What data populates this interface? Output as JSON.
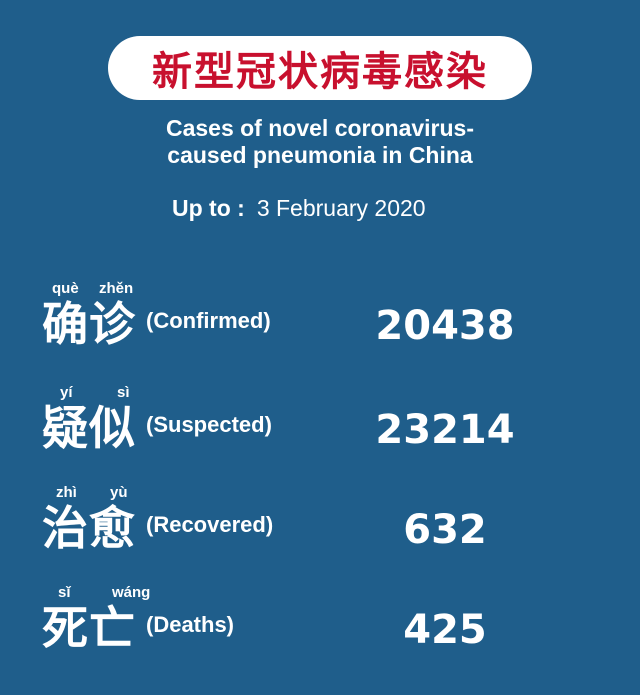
{
  "header": {
    "title_cn": "新型冠状病毒感染",
    "subtitle_line1": "Cases of novel coronavirus-",
    "subtitle_line2": "caused pneumonia in China",
    "up_to_label": "Up to :",
    "date": "3 February 2020"
  },
  "colors": {
    "background": "#1f5e8b",
    "title_badge": "#ffffff",
    "title_text": "#c8102e",
    "text": "#ffffff"
  },
  "stats": [
    {
      "pinyin": [
        "què",
        "zhěn"
      ],
      "hanzi": "确诊",
      "english": "(Confirmed)",
      "value": "20438"
    },
    {
      "pinyin": [
        "yí",
        "sì"
      ],
      "hanzi": "疑似",
      "english": "(Suspected)",
      "value": "23214"
    },
    {
      "pinyin": [
        "zhì",
        "yù"
      ],
      "hanzi": "治愈",
      "english": "(Recovered)",
      "value": "632"
    },
    {
      "pinyin": [
        "sǐ",
        "wáng"
      ],
      "hanzi": "死亡",
      "english": "(Deaths)",
      "value": "425"
    }
  ]
}
